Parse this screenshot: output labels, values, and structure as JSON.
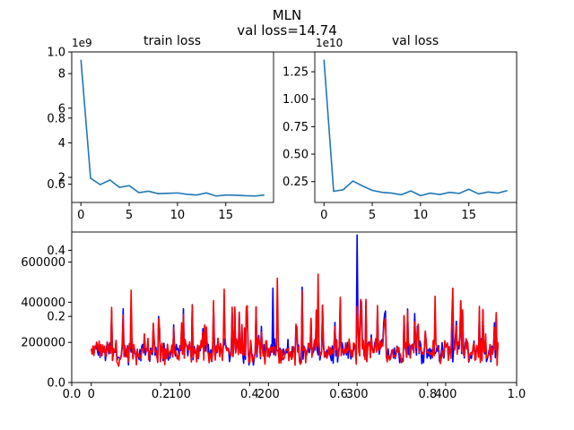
{
  "figure": {
    "suptitle": "MLN",
    "subtitle": "val loss=14.74"
  },
  "chart_data": [
    {
      "type": "line",
      "title": "train loss",
      "x": [
        0,
        1,
        2,
        3,
        4,
        5,
        6,
        7,
        8,
        9,
        10,
        11,
        12,
        13,
        14,
        15,
        16,
        17,
        18,
        19
      ],
      "values": [
        8800000000.0,
        1950000000.0,
        1580000000.0,
        1850000000.0,
        1420000000.0,
        1520000000.0,
        1120000000.0,
        1200000000.0,
        1060000000.0,
        1080000000.0,
        1100000000.0,
        1020000000.0,
        980000000.0,
        1100000000.0,
        920000000.0,
        980000000.0,
        970000000.0,
        940000000.0,
        920000000.0,
        980000000.0
      ],
      "color": "#1f77b4",
      "xticks": [
        "0",
        "5",
        "10",
        "15"
      ],
      "yticks": [
        "2",
        "4",
        "6",
        "8"
      ],
      "offset_text": "1e9"
    },
    {
      "type": "line",
      "title": "val loss",
      "x": [
        0,
        1,
        2,
        3,
        4,
        5,
        6,
        7,
        8,
        9,
        10,
        11,
        12,
        13,
        14,
        15,
        16,
        17,
        18,
        19
      ],
      "values": [
        13600000000.0,
        1620000000.0,
        1760000000.0,
        2550000000.0,
        2100000000.0,
        1700000000.0,
        1520000000.0,
        1450000000.0,
        1300000000.0,
        1650000000.0,
        1220000000.0,
        1450000000.0,
        1320000000.0,
        1520000000.0,
        1420000000.0,
        1800000000.0,
        1380000000.0,
        1550000000.0,
        1450000000.0,
        1680000000.0
      ],
      "color": "#1f77b4",
      "xticks": [
        "0",
        "5",
        "10",
        "15"
      ],
      "yticks": [
        "0.25",
        "0.50",
        "0.75",
        "1.00",
        "1.25"
      ],
      "offset_text": "1e10"
    },
    {
      "type": "line",
      "xticks": [
        "0",
        "100",
        "200",
        "300",
        "400"
      ],
      "yticks": [
        "200000",
        "400000",
        "600000"
      ],
      "series": [
        {
          "color": "#0000ff",
          "amplitude": 1.0
        },
        {
          "color": "#ff0000",
          "amplitude": 1.0
        }
      ],
      "n_points": 460,
      "ylim": [
        0,
        750000.0
      ],
      "xlim": [
        -22,
        480
      ]
    },
    {
      "type": "overlay-axes",
      "xticks": [
        "0.0",
        "0.2",
        "0.4",
        "0.6",
        "0.8",
        "1.0"
      ],
      "yticks": [
        "0.0",
        "0.2",
        "0.4",
        "0.6",
        "0.8",
        "1.0"
      ]
    }
  ]
}
